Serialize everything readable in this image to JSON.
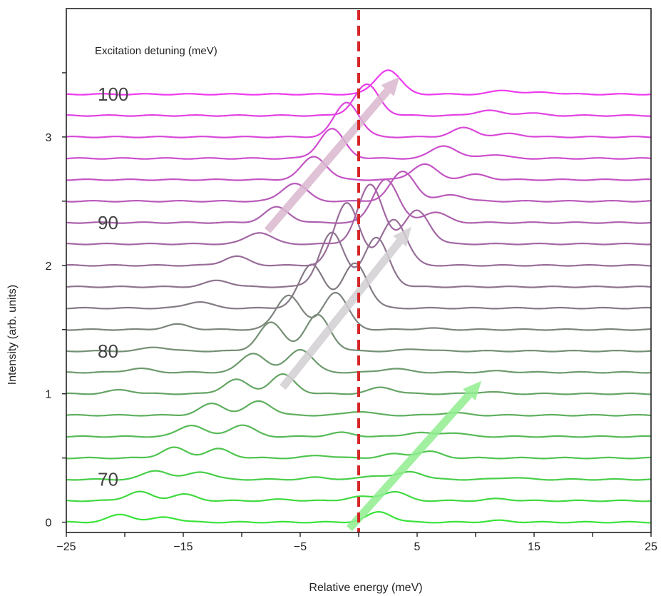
{
  "chart_data": {
    "type": "line",
    "xlabel": "Relative energy (meV)",
    "ylabel": "Intensity (arb. units)",
    "xlim": [
      -25,
      25
    ],
    "ylim": [
      -0.08,
      4.0
    ],
    "x_ticks": [
      -25,
      -20,
      -15,
      -10,
      -5,
      0,
      5,
      10,
      15,
      20,
      25
    ],
    "x_tick_labels": [
      "−25",
      "",
      "−15",
      "",
      "−5",
      "",
      "5",
      "",
      "15",
      "",
      "25"
    ],
    "y_ticks": [
      0,
      0.5,
      1,
      1.5,
      2,
      2.5,
      3,
      3.5
    ],
    "y_tick_labels": [
      "0",
      "",
      "1",
      "",
      "2",
      "",
      "3",
      ""
    ],
    "annotation": "Excitation detuning (meV)",
    "detuning_labels": [
      {
        "text": "70",
        "trace": 2
      },
      {
        "text": "80",
        "trace": 8
      },
      {
        "text": "90",
        "trace": 14
      },
      {
        "text": "100",
        "trace": 20
      }
    ],
    "reference_line": {
      "x": 0,
      "color": "#d62728",
      "style": "dashed"
    },
    "arrows": [
      {
        "from": [
          -0.8,
          -0.05
        ],
        "to": [
          10.5,
          1.1
        ],
        "color": "#90ee90"
      },
      {
        "from": [
          -6.5,
          1.05
        ],
        "to": [
          4.5,
          2.3
        ],
        "color": "#d3cfd3"
      },
      {
        "from": [
          -7.8,
          2.27
        ],
        "to": [
          3.5,
          3.47
        ],
        "color": "#dbb8cf"
      }
    ],
    "color_start": "#39e339",
    "color_mid": "#837a83",
    "color_end": "#ee3aee",
    "trace_count": 21,
    "baseline_step": 0.1667,
    "series": [
      {
        "baseline": 0.0,
        "peaks": [
          [
            -20.3,
            0.06
          ],
          [
            -16.5,
            0.04
          ],
          [
            1.8,
            0.08
          ],
          [
            12,
            0.012
          ]
        ]
      },
      {
        "baseline": 0.167,
        "peaks": [
          [
            -18.8,
            0.07
          ],
          [
            -15.0,
            0.05
          ],
          [
            -6.5,
            0.01
          ],
          [
            0,
            0.03
          ],
          [
            3.0,
            0.07
          ],
          [
            12,
            0.015
          ]
        ]
      },
      {
        "baseline": 0.333,
        "peaks": [
          [
            -17.3,
            0.07
          ],
          [
            -13.5,
            0.06
          ],
          [
            -3.5,
            0.015
          ],
          [
            1.5,
            0.03
          ],
          [
            4.5,
            0.06
          ],
          [
            13,
            0.015
          ]
        ]
      },
      {
        "baseline": 0.5,
        "peaks": [
          [
            -15.8,
            0.08
          ],
          [
            -12.0,
            0.07
          ],
          [
            -3.3,
            0.02
          ],
          [
            3.0,
            0.03
          ],
          [
            6.0,
            0.05
          ]
        ]
      },
      {
        "baseline": 0.667,
        "peaks": [
          [
            -14.3,
            0.09
          ],
          [
            -10.0,
            0.09
          ],
          [
            -1.5,
            0.03
          ],
          [
            5.0,
            0.03
          ],
          [
            8.0,
            0.03
          ]
        ]
      },
      {
        "baseline": 0.833,
        "peaks": [
          [
            -12.5,
            0.09
          ],
          [
            -8.5,
            0.11
          ],
          [
            0,
            0.03
          ],
          [
            8.0,
            0.02
          ]
        ]
      },
      {
        "baseline": 1.0,
        "peaks": [
          [
            -20.3,
            0.03
          ],
          [
            -10.5,
            0.11
          ],
          [
            -6.5,
            0.15
          ],
          [
            2.0,
            0.05
          ],
          [
            11.0,
            0.015
          ]
        ]
      },
      {
        "baseline": 1.167,
        "peaks": [
          [
            -18.8,
            0.03
          ],
          [
            -9.0,
            0.15
          ],
          [
            -5.0,
            0.18
          ],
          [
            3.0,
            0.03
          ],
          [
            12,
            0.01
          ]
        ]
      },
      {
        "baseline": 1.333,
        "peaks": [
          [
            -17.3,
            0.03
          ],
          [
            -7.5,
            0.22
          ],
          [
            -3.5,
            0.28
          ],
          [
            5.0,
            0.015
          ]
        ]
      },
      {
        "baseline": 1.5,
        "peaks": [
          [
            -15.5,
            0.04
          ],
          [
            -6.0,
            0.27
          ],
          [
            -2.0,
            0.29
          ],
          [
            6.0,
            0.01
          ]
        ]
      },
      {
        "baseline": 1.667,
        "peaks": [
          [
            -13.7,
            0.05
          ],
          [
            -4.0,
            0.34
          ],
          [
            -0.3,
            0.35
          ]
        ]
      },
      {
        "baseline": 1.833,
        "peaks": [
          [
            -12.0,
            0.05
          ],
          [
            -2.3,
            0.42
          ],
          [
            1.5,
            0.38
          ]
        ]
      },
      {
        "baseline": 2.0,
        "peaks": [
          [
            -10.5,
            0.07
          ],
          [
            -1.0,
            0.49
          ],
          [
            3.0,
            0.36
          ]
        ]
      },
      {
        "baseline": 2.167,
        "peaks": [
          [
            -8.5,
            0.09
          ],
          [
            1.0,
            0.46
          ],
          [
            5.0,
            0.26
          ]
        ]
      },
      {
        "baseline": 2.333,
        "peaks": [
          [
            -7.0,
            0.12
          ],
          [
            2.3,
            0.34
          ],
          [
            6.5,
            0.08
          ]
        ]
      },
      {
        "baseline": 2.5,
        "peaks": [
          [
            -5.5,
            0.14
          ],
          [
            3.8,
            0.23
          ],
          [
            8.0,
            0.05
          ]
        ]
      },
      {
        "baseline": 2.667,
        "peaks": [
          [
            -3.8,
            0.18
          ],
          [
            5.6,
            0.12
          ],
          [
            10.0,
            0.04
          ]
        ]
      },
      {
        "baseline": 2.833,
        "peaks": [
          [
            -2.3,
            0.23
          ],
          [
            7.3,
            0.1
          ],
          [
            11.5,
            0.03
          ]
        ]
      },
      {
        "baseline": 3.0,
        "peaks": [
          [
            -1.0,
            0.27
          ],
          [
            9.0,
            0.07
          ],
          [
            13.0,
            0.025
          ]
        ]
      },
      {
        "baseline": 3.167,
        "peaks": [
          [
            0.7,
            0.24
          ],
          [
            11.0,
            0.04
          ],
          [
            14.5,
            0.02
          ]
        ]
      },
      {
        "baseline": 3.333,
        "peaks": [
          [
            2.5,
            0.19
          ],
          [
            12.5,
            0.03
          ],
          [
            16.0,
            0.015
          ]
        ]
      }
    ]
  }
}
